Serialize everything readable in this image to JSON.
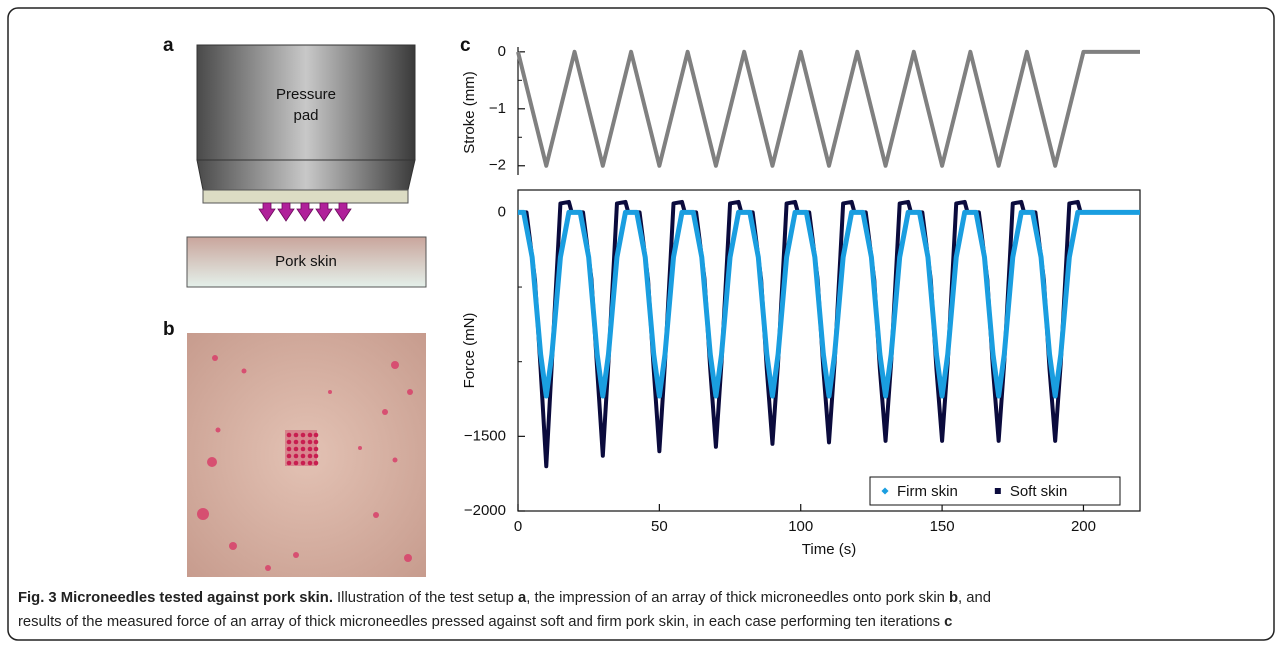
{
  "panels": {
    "a": {
      "label": "a",
      "pad_label": [
        "Pressure",
        "pad"
      ],
      "skin_label": "Pork skin"
    },
    "b": {
      "label": "b"
    },
    "c": {
      "label": "c"
    }
  },
  "chart_data": [
    {
      "type": "line",
      "ylabel": "Stroke (mm)",
      "xlim": [
        0,
        220
      ],
      "ylim": [
        -2.25,
        0.12
      ],
      "yticks": [
        0,
        {
          "value": -1,
          "label": "−1"
        },
        {
          "value": -2,
          "label": "−2"
        }
      ],
      "minor_yticks": [
        -0.5,
        -1.5
      ],
      "series": [
        {
          "color": "#808080",
          "x": [
            0,
            10,
            20,
            30,
            40,
            50,
            60,
            70,
            80,
            90,
            100,
            110,
            120,
            130,
            140,
            150,
            160,
            170,
            180,
            190,
            200,
            220
          ],
          "values": [
            0,
            -2,
            0,
            -2,
            0,
            -2,
            0,
            -2,
            0,
            -2,
            0,
            -2,
            0,
            -2,
            0,
            -2,
            0,
            -2,
            0,
            -2,
            0,
            0
          ]
        }
      ]
    },
    {
      "type": "line",
      "ylabel": "Force (mN)",
      "xlabel": "Time (s)",
      "xlim": [
        0,
        220
      ],
      "ylim": [
        -2000,
        150
      ],
      "xticks": [
        0,
        50,
        100,
        150,
        200
      ],
      "yticks": [
        0,
        {
          "value": -1500,
          "label": "−1500"
        },
        {
          "value": -2000,
          "label": "−2000"
        }
      ],
      "minor_yticks": [
        -500,
        -1000
      ],
      "legend": "lower right",
      "series": [
        {
          "name": "Firm skin",
          "color": "#1a9ee0",
          "marker": "diamond",
          "x": [
            0,
            2,
            5,
            8,
            10,
            12,
            15,
            18,
            22,
            25,
            28,
            30,
            32,
            35,
            38,
            42,
            45,
            48,
            50,
            52,
            55,
            58,
            62,
            65,
            68,
            70,
            72,
            75,
            78,
            82,
            85,
            88,
            90,
            92,
            95,
            98,
            102,
            105,
            108,
            110,
            112,
            115,
            118,
            122,
            125,
            128,
            130,
            132,
            135,
            138,
            142,
            145,
            148,
            150,
            152,
            155,
            158,
            162,
            165,
            168,
            170,
            172,
            175,
            178,
            182,
            185,
            188,
            190,
            192,
            195,
            198,
            220
          ],
          "values": [
            0,
            0,
            -300,
            -950,
            -1230,
            -950,
            -300,
            0,
            0,
            -300,
            -950,
            -1230,
            -950,
            -300,
            0,
            0,
            -300,
            -950,
            -1230,
            -950,
            -300,
            0,
            0,
            -300,
            -950,
            -1230,
            -950,
            -300,
            0,
            0,
            -300,
            -950,
            -1230,
            -950,
            -300,
            0,
            0,
            -300,
            -950,
            -1230,
            -950,
            -300,
            0,
            0,
            -300,
            -950,
            -1230,
            -950,
            -300,
            0,
            0,
            -300,
            -950,
            -1230,
            -950,
            -300,
            0,
            0,
            -300,
            -950,
            -1230,
            -950,
            -300,
            0,
            0,
            -300,
            -950,
            -1230,
            -950,
            -300,
            0,
            0
          ]
        },
        {
          "name": "Soft skin",
          "color": "#0b0b3d",
          "marker": "square",
          "x": [
            0,
            3,
            6,
            8,
            10,
            12,
            14,
            15,
            18,
            19,
            23,
            26,
            28,
            30,
            32,
            34,
            35,
            38,
            39,
            43,
            46,
            48,
            50,
            52,
            54,
            55,
            58,
            59,
            63,
            66,
            68,
            70,
            72,
            74,
            75,
            78,
            79,
            83,
            86,
            88,
            90,
            92,
            94,
            95,
            98,
            99,
            103,
            106,
            108,
            110,
            112,
            114,
            115,
            118,
            119,
            123,
            126,
            128,
            130,
            132,
            134,
            135,
            138,
            139,
            143,
            146,
            148,
            150,
            152,
            154,
            155,
            158,
            159,
            163,
            166,
            168,
            170,
            172,
            174,
            175,
            178,
            179,
            183,
            186,
            188,
            190,
            192,
            194,
            195,
            198,
            199,
            220
          ],
          "values": [
            0,
            0,
            -450,
            -1050,
            -1700,
            -1000,
            -300,
            60,
            70,
            0,
            0,
            -450,
            -1050,
            -1630,
            -1000,
            -300,
            60,
            70,
            0,
            0,
            -450,
            -1050,
            -1600,
            -1000,
            -300,
            60,
            70,
            0,
            0,
            -450,
            -1050,
            -1570,
            -1000,
            -300,
            60,
            70,
            0,
            0,
            -450,
            -1050,
            -1550,
            -1000,
            -300,
            60,
            70,
            0,
            0,
            -450,
            -1050,
            -1540,
            -1000,
            -300,
            60,
            70,
            0,
            0,
            -450,
            -1050,
            -1530,
            -1000,
            -300,
            60,
            70,
            0,
            0,
            -450,
            -1050,
            -1530,
            -1000,
            -300,
            60,
            70,
            0,
            0,
            -450,
            -1050,
            -1530,
            -1000,
            -300,
            60,
            70,
            0,
            0,
            -450,
            -1050,
            -1530,
            -1000,
            -300,
            60,
            70,
            0,
            0
          ]
        }
      ]
    }
  ],
  "caption": {
    "lines": [
      [
        {
          "text": "Fig. 3 Microneedles tested against pork skin.",
          "bold": true
        },
        {
          "text": " Illustration of the test setup ",
          "bold": false
        },
        {
          "text": "a",
          "bold": true
        },
        {
          "text": ", the impression of an array of thick microneedles onto pork skin ",
          "bold": false
        },
        {
          "text": "b",
          "bold": true
        },
        {
          "text": ", and",
          "bold": false
        }
      ],
      [
        {
          "text": "results of the measured force of an array of thick microneedles pressed against soft and firm pork skin, in each case performing ten iterations ",
          "bold": false
        },
        {
          "text": "c",
          "bold": true
        }
      ]
    ]
  }
}
